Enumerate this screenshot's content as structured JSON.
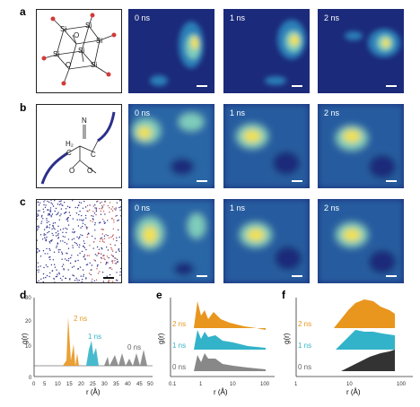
{
  "panels": {
    "a": {
      "label": "a",
      "times": [
        "0 ns",
        "1 ns",
        "2 ns"
      ],
      "atoms": [
        "Si",
        "O"
      ]
    },
    "b": {
      "label": "b",
      "times": [
        "0 ns",
        "1 ns",
        "2 ns"
      ],
      "atoms": [
        "N",
        "H₂",
        "C",
        "C",
        "O",
        "O"
      ]
    },
    "c": {
      "label": "c",
      "times": [
        "0 ns",
        "1 ns",
        "2 ns"
      ]
    }
  },
  "plots": {
    "d": {
      "label": "d",
      "ylabel": "g(r)",
      "xlabel": "r (Å)",
      "yticks": [
        "0",
        "10",
        "20",
        "30"
      ],
      "xticks": [
        "0",
        "5",
        "10",
        "15",
        "20",
        "25",
        "30",
        "35",
        "40",
        "45",
        "50"
      ],
      "series_labels": [
        "2 ns",
        "1 ns",
        "0 ns"
      ]
    },
    "e": {
      "label": "e",
      "ylabel": "g(r)",
      "xlabel": "r (Å)",
      "xticks": [
        "0.1",
        "1",
        "10",
        "100"
      ],
      "series_labels": [
        "2 ns",
        "1 ns",
        "0 ns"
      ]
    },
    "f": {
      "label": "f",
      "ylabel": "g(r)",
      "xlabel": "r (Å)",
      "xticks": [
        "1",
        "10",
        "100"
      ],
      "series_labels": [
        "2 ns",
        "1 ns",
        "0 ns"
      ]
    }
  },
  "colors": {
    "orange": "#e8961e",
    "teal": "#33b3c9",
    "gray": "#666666",
    "map_bg": "#1b2a7a"
  }
}
